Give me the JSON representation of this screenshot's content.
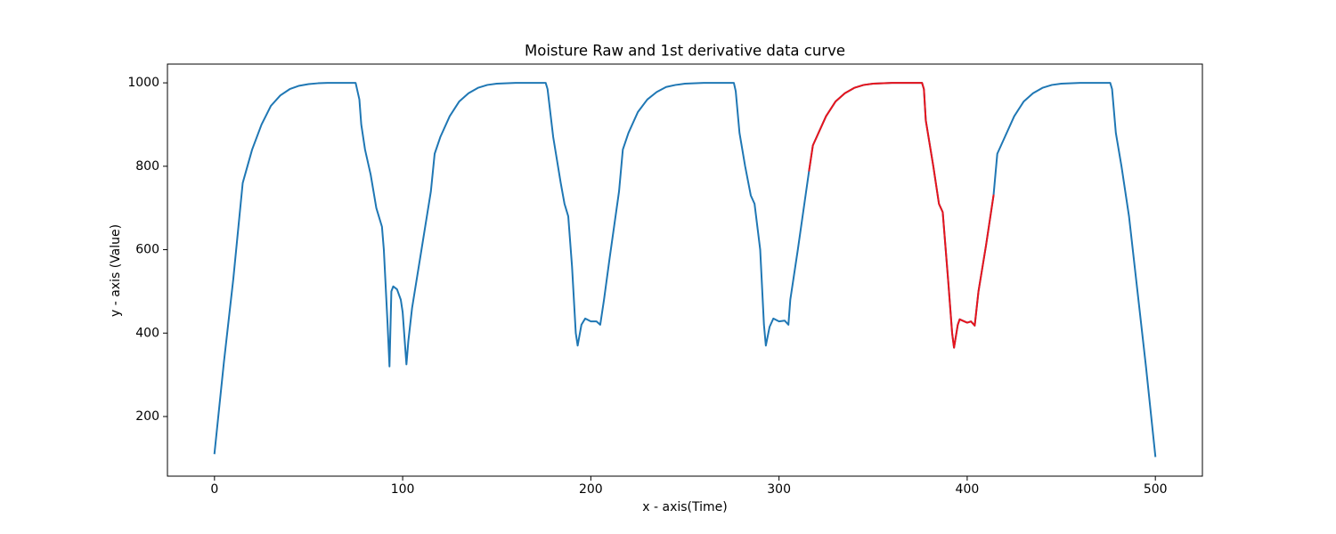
{
  "chart_data": {
    "type": "line",
    "title": "Moisture Raw and 1st derivative data curve",
    "x_label": "x - axis(Time)",
    "y_label": "y - axis (Value)",
    "xlim": [
      -25,
      525
    ],
    "ylim": [
      57,
      1045
    ],
    "xticks": [
      0,
      100,
      200,
      300,
      400,
      500
    ],
    "yticks": [
      200,
      400,
      600,
      800,
      1000
    ],
    "grid": false,
    "x": [
      0,
      5,
      10,
      15,
      20,
      25,
      30,
      35,
      40,
      45,
      50,
      55,
      60,
      70,
      75,
      77,
      78,
      80,
      83,
      86,
      89,
      90,
      92,
      93,
      94,
      95,
      97,
      99,
      100,
      102,
      103,
      105,
      110,
      115,
      117,
      120,
      125,
      130,
      135,
      140,
      145,
      150,
      160,
      176,
      177,
      180,
      184,
      186,
      188,
      190,
      192,
      193,
      195,
      197,
      200,
      203,
      205,
      207,
      210,
      215,
      217,
      220,
      225,
      230,
      235,
      240,
      245,
      250,
      260,
      276,
      277,
      279,
      282,
      285,
      287,
      290,
      292,
      293,
      295,
      297,
      300,
      303,
      305,
      306,
      310,
      316,
      318,
      320,
      325,
      330,
      335,
      340,
      345,
      350,
      360,
      376,
      377,
      378,
      382,
      385,
      387,
      390,
      392,
      393,
      395,
      396,
      400,
      402,
      404,
      406,
      410,
      414,
      416,
      418,
      420,
      425,
      430,
      435,
      440,
      445,
      450,
      460,
      476,
      477,
      479,
      482,
      486,
      490,
      495,
      500
    ],
    "series": [
      {
        "color": "#1f77b4",
        "values": [
          112,
          330,
          530,
          760,
          840,
          900,
          945,
          970,
          985,
          993,
          997,
          999,
          1000,
          1000,
          1000,
          960,
          900,
          840,
          780,
          700,
          655,
          600,
          420,
          320,
          500,
          512,
          505,
          480,
          450,
          325,
          380,
          460,
          600,
          740,
          830,
          870,
          920,
          955,
          975,
          988,
          995,
          998,
          1000,
          1000,
          985,
          870,
          760,
          710,
          680,
          560,
          400,
          370,
          420,
          435,
          428,
          428,
          420,
          480,
          580,
          740,
          840,
          880,
          930,
          960,
          978,
          990,
          995,
          998,
          1000,
          1000,
          980,
          880,
          800,
          730,
          710,
          600,
          420,
          370,
          415,
          435,
          428,
          430,
          420,
          480,
          600,
          790,
          850,
          870,
          920,
          955,
          975,
          988,
          995,
          998,
          1000,
          1000,
          985,
          910,
          800,
          710,
          690,
          520,
          400,
          365,
          420,
          433,
          425,
          428,
          418,
          500,
          610,
          730,
          830,
          850,
          870,
          920,
          955,
          975,
          988,
          995,
          998,
          1000,
          1000,
          985,
          880,
          800,
          680,
          520,
          320,
          105
        ]
      },
      {
        "color": "#e8141c",
        "values": [
          null,
          null,
          null,
          null,
          null,
          null,
          null,
          null,
          null,
          null,
          null,
          null,
          null,
          null,
          null,
          null,
          null,
          null,
          null,
          null,
          null,
          null,
          null,
          null,
          null,
          null,
          null,
          null,
          null,
          null,
          null,
          null,
          null,
          null,
          null,
          null,
          null,
          null,
          null,
          null,
          null,
          null,
          null,
          null,
          null,
          null,
          null,
          null,
          null,
          null,
          null,
          null,
          null,
          null,
          null,
          null,
          null,
          null,
          null,
          null,
          null,
          null,
          null,
          null,
          null,
          null,
          null,
          null,
          null,
          null,
          null,
          null,
          null,
          null,
          null,
          null,
          null,
          null,
          null,
          null,
          null,
          null,
          null,
          null,
          null,
          790,
          850,
          870,
          920,
          955,
          975,
          988,
          995,
          998,
          1000,
          1000,
          985,
          910,
          800,
          710,
          690,
          520,
          400,
          365,
          420,
          433,
          425,
          428,
          418,
          500,
          610,
          730,
          null,
          null,
          null,
          null,
          null,
          null,
          null,
          null,
          null,
          null,
          null,
          null,
          null,
          null,
          null,
          null,
          null,
          null
        ]
      }
    ]
  }
}
